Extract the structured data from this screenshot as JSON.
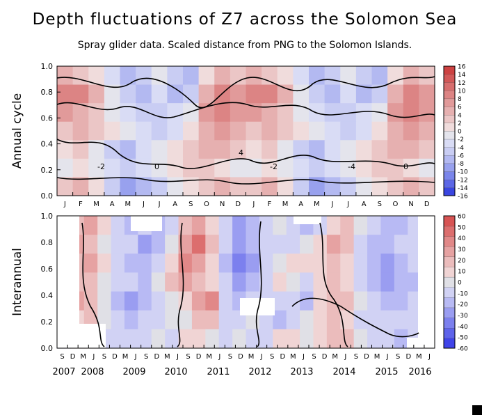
{
  "title": "Depth fluctuations of Z7 across the Solomon Sea",
  "subtitle": "Spray glider data. Scaled distance from PNG to the Solomon Islands.",
  "chart_data": [
    {
      "type": "heatmap",
      "ylabel": "Annual cycle",
      "ylim": [
        0,
        1
      ],
      "yticks": [
        "0.0",
        "0.2",
        "0.4",
        "0.6",
        "0.8",
        "1.0"
      ],
      "xtick_labels": [
        "J",
        "F",
        "M",
        "A",
        "M",
        "J",
        "J",
        "A",
        "S",
        "O",
        "N",
        "D",
        "J",
        "F",
        "M",
        "A",
        "M",
        "J",
        "J",
        "A",
        "S",
        "O",
        "N",
        "D"
      ],
      "colorbar_ticks": [
        "16",
        "14",
        "12",
        "10",
        "8",
        "6",
        "4",
        "2",
        "0",
        "-2",
        "-4",
        "-6",
        "-8",
        "-10",
        "-12",
        "-14",
        "-16"
      ],
      "contour_labels": [
        "-2",
        "0",
        "4",
        "-2",
        "-4",
        "0"
      ],
      "pattern": {
        "description": "two repeated annual cycles",
        "months": 24,
        "cells": [
          [
            4,
            2,
            0,
            -4,
            -8,
            -6,
            -2,
            -6,
            -8,
            0,
            4,
            2,
            4,
            2,
            0,
            -4,
            -8,
            -6,
            -2,
            -6,
            -8,
            0,
            4,
            2
          ],
          [
            8,
            8,
            4,
            -2,
            -6,
            -8,
            -4,
            -8,
            -6,
            4,
            8,
            6,
            8,
            8,
            4,
            -2,
            -6,
            -8,
            -4,
            -8,
            -6,
            4,
            8,
            6
          ],
          [
            6,
            4,
            2,
            -2,
            -4,
            -6,
            -6,
            -4,
            -2,
            6,
            8,
            6,
            6,
            4,
            2,
            -2,
            -4,
            -6,
            -6,
            -4,
            -2,
            6,
            8,
            6
          ],
          [
            2,
            4,
            2,
            0,
            -2,
            -4,
            -6,
            -4,
            0,
            4,
            6,
            4,
            2,
            4,
            2,
            0,
            -2,
            -4,
            -6,
            -4,
            0,
            4,
            6,
            4
          ],
          [
            0,
            2,
            -2,
            -6,
            -8,
            -4,
            -2,
            0,
            2,
            4,
            4,
            2,
            0,
            2,
            -2,
            -6,
            -8,
            -4,
            -2,
            0,
            2,
            4,
            4,
            2
          ],
          [
            -2,
            0,
            -2,
            -4,
            -6,
            -4,
            -2,
            0,
            2,
            2,
            0,
            -2,
            -2,
            0,
            -2,
            -4,
            -6,
            -4,
            -2,
            0,
            2,
            2,
            0,
            -2
          ],
          [
            2,
            4,
            0,
            -6,
            -10,
            -8,
            -6,
            -2,
            0,
            2,
            4,
            2,
            2,
            4,
            0,
            -6,
            -10,
            -8,
            -6,
            -2,
            0,
            2,
            4,
            2
          ]
        ]
      },
      "palette": [
        "#3a46e0",
        "#5c67e6",
        "#7a85ea",
        "#98a1ee",
        "#b3b9f1",
        "#c9cdf3",
        "#d9dcf5",
        "#e4e4ec",
        "#f0dcdc",
        "#ebc6c6",
        "#e6b0b0",
        "#e19a9a",
        "#dc8484",
        "#d76e6e",
        "#d25858",
        "#cd4242"
      ]
    },
    {
      "type": "heatmap",
      "ylabel": "Interannual",
      "ylim": [
        0,
        1
      ],
      "yticks": [
        "0.0",
        "0.2",
        "0.4",
        "0.6",
        "0.8",
        "1.0"
      ],
      "xtick_labels": [
        "S",
        "D",
        "M",
        "J",
        "S",
        "D",
        "M",
        "J",
        "S",
        "D",
        "M",
        "J",
        "S",
        "D",
        "M",
        "J",
        "S",
        "D",
        "M",
        "J",
        "S",
        "D",
        "M",
        "J",
        "S",
        "D",
        "M",
        "J",
        "S",
        "D",
        "M",
        "J",
        "S",
        "D",
        "M",
        "J"
      ],
      "year_labels": [
        "2007",
        "2008",
        "2009",
        "2010",
        "2011",
        "2012",
        "2013",
        "2014",
        "2015",
        "2016"
      ],
      "colorbar_ticks": [
        "60",
        "50",
        "40",
        "30",
        "20",
        "10",
        "0",
        "-10",
        "-20",
        "-30",
        "-40",
        "-50",
        "-60"
      ],
      "cells": [
        [
          0,
          20,
          30,
          10,
          -10,
          -20,
          -10,
          -20,
          -10,
          20,
          30,
          10,
          -10,
          -30,
          -20,
          -10,
          0,
          -10,
          -20,
          -10,
          10,
          20,
          0,
          -10,
          -20,
          -20,
          -10,
          -10
        ],
        [
          10,
          30,
          20,
          0,
          -10,
          -10,
          -30,
          -20,
          0,
          30,
          50,
          20,
          -10,
          -30,
          -20,
          -10,
          -10,
          -10,
          0,
          10,
          30,
          20,
          -10,
          -20,
          -20,
          -10,
          -10,
          -10
        ],
        [
          20,
          20,
          30,
          10,
          -10,
          -20,
          -20,
          -10,
          10,
          40,
          30,
          10,
          -20,
          -40,
          -30,
          -10,
          0,
          10,
          10,
          10,
          20,
          10,
          -10,
          -20,
          -30,
          -20,
          -10,
          -20
        ],
        [
          10,
          20,
          20,
          0,
          -10,
          -10,
          -20,
          0,
          20,
          30,
          20,
          10,
          -10,
          -30,
          -20,
          -10,
          10,
          0,
          -10,
          10,
          20,
          10,
          -10,
          -20,
          -30,
          -20,
          -20,
          -10
        ],
        [
          10,
          30,
          20,
          0,
          -20,
          -30,
          -20,
          -10,
          0,
          10,
          30,
          40,
          -10,
          -20,
          -10,
          -10,
          -10,
          -10,
          -20,
          10,
          20,
          20,
          0,
          -10,
          -20,
          -20,
          -10,
          -10
        ],
        [
          0,
          10,
          20,
          0,
          -10,
          -20,
          -10,
          -10,
          0,
          0,
          20,
          20,
          -10,
          -10,
          0,
          -10,
          -20,
          -10,
          0,
          10,
          20,
          10,
          -10,
          -10,
          -10,
          -10,
          -10,
          -10
        ],
        [
          -10,
          10,
          10,
          -10,
          -10,
          -10,
          -10,
          0,
          -10,
          10,
          10,
          0,
          -10,
          0,
          -10,
          -10,
          10,
          10,
          0,
          10,
          20,
          20,
          0,
          -10,
          -10,
          -20,
          -10,
          0
        ]
      ],
      "palette": [
        "#4044e8",
        "#5e63ea",
        "#7c80ee",
        "#9a9df1",
        "#b8baf4",
        "#d1d2f4",
        "#e0e0e6",
        "#f0d4d4",
        "#ebbcbc",
        "#e6a2a2",
        "#e18888",
        "#dc6e6e",
        "#d75454"
      ]
    }
  ]
}
